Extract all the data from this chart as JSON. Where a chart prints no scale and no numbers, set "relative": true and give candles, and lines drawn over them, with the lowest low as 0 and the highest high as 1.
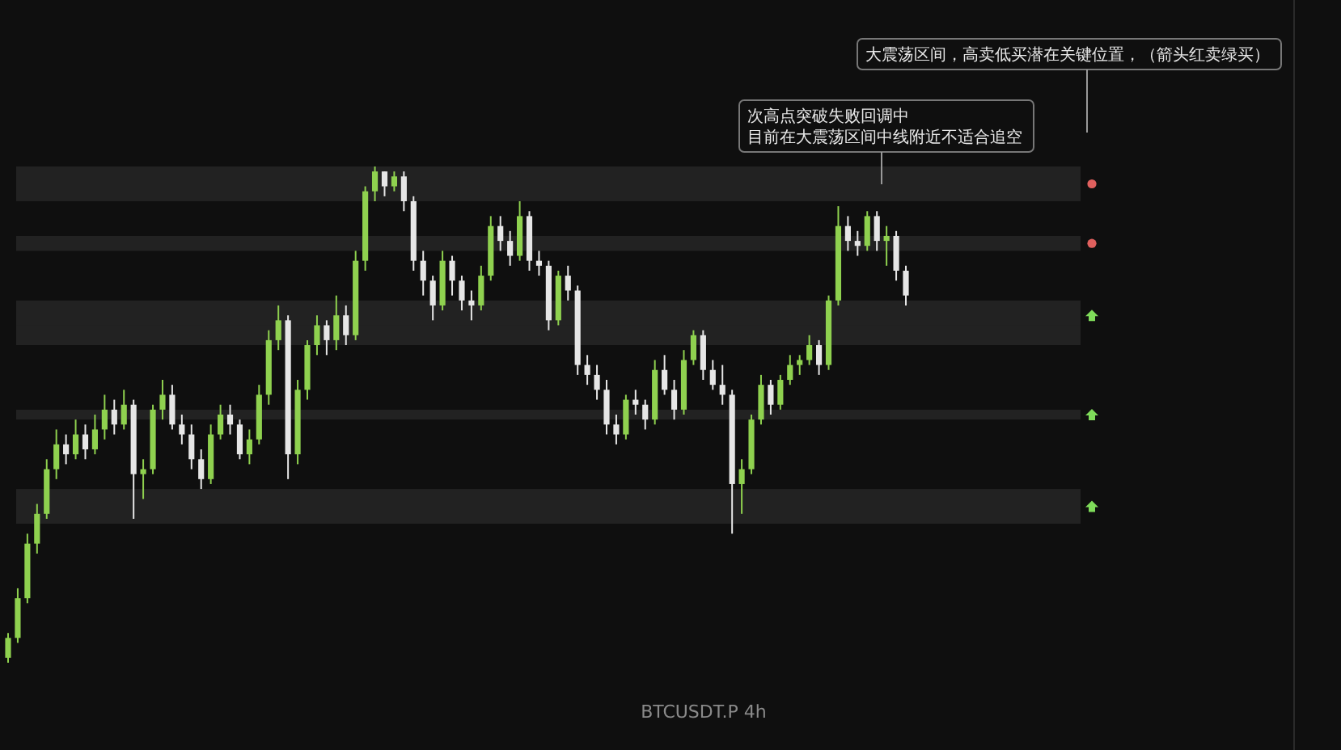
{
  "chart_data": {
    "type": "candlestick",
    "title": "BTCUSDT.P 4h",
    "relative": true,
    "colors": [
      "#8fd14f",
      "#8fd14f",
      "#8fd14f",
      "#8fd14f",
      "#8fd14f",
      "#8fd14f",
      "#e6e6e6",
      "#8fd14f",
      "#e6e6e6",
      "#8fd14f",
      "#8fd14f",
      "#e6e6e6",
      "#8fd14f",
      "#e6e6e6",
      "#8fd14f",
      "#8fd14f",
      "#8fd14f",
      "#e6e6e6",
      "#e6e6e6",
      "#e6e6e6",
      "#e6e6e6",
      "#8fd14f",
      "#8fd14f",
      "#e6e6e6",
      "#e6e6e6",
      "#8fd14f",
      "#8fd14f",
      "#8fd14f",
      "#8fd14f",
      "#e6e6e6",
      "#8fd14f",
      "#8fd14f",
      "#8fd14f",
      "#e6e6e6",
      "#8fd14f",
      "#e6e6e6",
      "#8fd14f",
      "#8fd14f",
      "#8fd14f",
      "#e6e6e6",
      "#8fd14f",
      "#e6e6e6",
      "#e6e6e6",
      "#e6e6e6",
      "#e6e6e6",
      "#8fd14f",
      "#e6e6e6",
      "#e6e6e6",
      "#e6e6e6",
      "#8fd14f",
      "#8fd14f",
      "#e6e6e6",
      "#e6e6e6",
      "#8fd14f",
      "#e6e6e6",
      "#e6e6e6",
      "#e6e6e6",
      "#8fd14f",
      "#e6e6e6",
      "#e6e6e6",
      "#e6e6e6",
      "#e6e6e6",
      "#e6e6e6",
      "#e6e6e6",
      "#8fd14f",
      "#e6e6e6",
      "#e6e6e6",
      "#8fd14f",
      "#e6e6e6",
      "#e6e6e6",
      "#8fd14f",
      "#8fd14f",
      "#e6e6e6",
      "#e6e6e6",
      "#e6e6e6",
      "#e6e6e6",
      "#8fd14f",
      "#8fd14f",
      "#8fd14f",
      "#e6e6e6",
      "#8fd14f",
      "#8fd14f",
      "#8fd14f",
      "#8fd14f",
      "#e6e6e6",
      "#8fd14f",
      "#8fd14f",
      "#e6e6e6",
      "#e6e6e6",
      "#8fd14f",
      "#e6e6e6",
      "#8fd14f",
      "#e6e6e6",
      "#e6e6e6"
    ],
    "annotations": [
      "大震荡区间，高卖低买潜在关键位置，（箭头红卖绿买）",
      "次高点突破失败回调中",
      "目前在大震荡区间中线附近不适合追空"
    ],
    "bands": [
      {
        "axis": "y",
        "from": 0.93,
        "to": 1,
        "color": "#222222"
      },
      {
        "axis": "y",
        "from": 0.83,
        "to": 0.86,
        "color": "#222222"
      },
      {
        "axis": "y",
        "from": 0.67,
        "to": 0.73,
        "color": "#222222"
      },
      {
        "axis": "y",
        "from": 0.64,
        "to": 0.68,
        "color": "#222222"
      },
      {
        "axis": "y",
        "from": 0.49,
        "to": 0.51,
        "color": "#222222"
      },
      {
        "axis": "y",
        "from": 0.28,
        "to": 0.35,
        "color": "#222222"
      }
    ],
    "categories": [
      null,
      null,
      null,
      null,
      null,
      null,
      null,
      null,
      null,
      null,
      null,
      null,
      null,
      null,
      null,
      null,
      null,
      null,
      null,
      null,
      null,
      null,
      null,
      null,
      null,
      null,
      null,
      null,
      null,
      null,
      null,
      null,
      null,
      null,
      null,
      null,
      null,
      null,
      null,
      null,
      null,
      null,
      null,
      null,
      null,
      null,
      null,
      null,
      null,
      null,
      null,
      null,
      null,
      null,
      null,
      null,
      null,
      null,
      null,
      null,
      null,
      null,
      null,
      null,
      null,
      null,
      null,
      null,
      null,
      null,
      null,
      null,
      null,
      null,
      null,
      null,
      null,
      null,
      null,
      null,
      null,
      null,
      null,
      null,
      null,
      null,
      null,
      null,
      null,
      null,
      null,
      null,
      null,
      null
    ],
    "ohlc": [
      [
        0.01,
        0.06,
        0,
        0.05
      ],
      [
        0.05,
        0.15,
        0.04,
        0.13
      ],
      [
        0.13,
        0.26,
        0.12,
        0.24
      ],
      [
        0.24,
        0.32,
        0.22,
        0.3
      ],
      [
        0.3,
        0.41,
        0.29,
        0.39
      ],
      [
        0.39,
        0.47,
        0.37,
        0.44
      ],
      [
        0.44,
        0.46,
        0.4,
        0.42
      ],
      [
        0.42,
        0.49,
        0.41,
        0.46
      ],
      [
        0.46,
        0.48,
        0.41,
        0.43
      ],
      [
        0.43,
        0.5,
        0.42,
        0.47
      ],
      [
        0.47,
        0.54,
        0.45,
        0.51
      ],
      [
        0.51,
        0.53,
        0.46,
        0.48
      ],
      [
        0.48,
        0.55,
        0.47,
        0.52
      ],
      [
        0.52,
        0.53,
        0.29,
        0.38
      ],
      [
        0.38,
        0.41,
        0.33,
        0.39
      ],
      [
        0.39,
        0.52,
        0.38,
        0.51
      ],
      [
        0.51,
        0.57,
        0.49,
        0.54
      ],
      [
        0.54,
        0.56,
        0.47,
        0.48
      ],
      [
        0.48,
        0.5,
        0.44,
        0.46
      ],
      [
        0.46,
        0.48,
        0.39,
        0.41
      ],
      [
        0.41,
        0.43,
        0.35,
        0.37
      ],
      [
        0.37,
        0.48,
        0.36,
        0.46
      ],
      [
        0.46,
        0.52,
        0.45,
        0.5
      ],
      [
        0.5,
        0.52,
        0.46,
        0.48
      ],
      [
        0.48,
        0.49,
        0.41,
        0.42
      ],
      [
        0.42,
        0.47,
        0.4,
        0.45
      ],
      [
        0.45,
        0.56,
        0.44,
        0.54
      ],
      [
        0.54,
        0.67,
        0.52,
        0.65
      ],
      [
        0.65,
        0.72,
        0.63,
        0.69
      ],
      [
        0.69,
        0.7,
        0.37,
        0.42
      ],
      [
        0.42,
        0.57,
        0.4,
        0.55
      ],
      [
        0.55,
        0.65,
        0.53,
        0.64
      ],
      [
        0.64,
        0.7,
        0.62,
        0.68
      ],
      [
        0.68,
        0.69,
        0.62,
        0.65
      ],
      [
        0.65,
        0.74,
        0.63,
        0.7
      ],
      [
        0.7,
        0.72,
        0.64,
        0.66
      ],
      [
        0.66,
        0.83,
        0.65,
        0.81
      ],
      [
        0.81,
        0.96,
        0.79,
        0.95
      ],
      [
        0.95,
        1,
        0.93,
        0.99
      ],
      [
        0.99,
        0.99,
        0.94,
        0.96
      ],
      [
        0.96,
        0.99,
        0.95,
        0.98
      ],
      [
        0.98,
        0.99,
        0.91,
        0.93
      ],
      [
        0.93,
        0.94,
        0.79,
        0.81
      ],
      [
        0.81,
        0.83,
        0.74,
        0.77
      ],
      [
        0.77,
        0.78,
        0.69,
        0.72
      ],
      [
        0.72,
        0.83,
        0.71,
        0.81
      ],
      [
        0.81,
        0.82,
        0.74,
        0.77
      ],
      [
        0.77,
        0.78,
        0.71,
        0.73
      ],
      [
        0.73,
        0.75,
        0.69,
        0.72
      ],
      [
        0.72,
        0.8,
        0.71,
        0.78
      ],
      [
        0.78,
        0.9,
        0.77,
        0.88
      ],
      [
        0.88,
        0.9,
        0.83,
        0.85
      ],
      [
        0.85,
        0.87,
        0.8,
        0.82
      ],
      [
        0.82,
        0.93,
        0.81,
        0.9
      ],
      [
        0.9,
        0.91,
        0.79,
        0.81
      ],
      [
        0.81,
        0.83,
        0.78,
        0.8
      ],
      [
        0.8,
        0.81,
        0.67,
        0.69
      ],
      [
        0.69,
        0.79,
        0.68,
        0.78
      ],
      [
        0.78,
        0.8,
        0.73,
        0.75
      ],
      [
        0.75,
        0.76,
        0.58,
        0.6
      ],
      [
        0.6,
        0.62,
        0.56,
        0.58
      ],
      [
        0.58,
        0.6,
        0.53,
        0.55
      ],
      [
        0.55,
        0.57,
        0.46,
        0.48
      ],
      [
        0.48,
        0.5,
        0.44,
        0.46
      ],
      [
        0.46,
        0.54,
        0.45,
        0.53
      ],
      [
        0.53,
        0.55,
        0.5,
        0.52
      ],
      [
        0.52,
        0.53,
        0.47,
        0.49
      ],
      [
        0.49,
        0.61,
        0.48,
        0.59
      ],
      [
        0.59,
        0.62,
        0.54,
        0.55
      ],
      [
        0.55,
        0.57,
        0.49,
        0.51
      ],
      [
        0.51,
        0.63,
        0.5,
        0.61
      ],
      [
        0.61,
        0.67,
        0.6,
        0.66
      ],
      [
        0.66,
        0.67,
        0.57,
        0.59
      ],
      [
        0.59,
        0.61,
        0.55,
        0.56
      ],
      [
        0.56,
        0.6,
        0.52,
        0.54
      ],
      [
        0.54,
        0.55,
        0.26,
        0.36
      ],
      [
        0.36,
        0.41,
        0.3,
        0.39
      ],
      [
        0.39,
        0.5,
        0.38,
        0.49
      ],
      [
        0.49,
        0.58,
        0.48,
        0.56
      ],
      [
        0.56,
        0.57,
        0.5,
        0.52
      ],
      [
        0.52,
        0.58,
        0.51,
        0.57
      ],
      [
        0.57,
        0.62,
        0.56,
        0.6
      ],
      [
        0.6,
        0.62,
        0.58,
        0.61
      ],
      [
        0.61,
        0.66,
        0.6,
        0.64
      ],
      [
        0.64,
        0.65,
        0.58,
        0.6
      ],
      [
        0.6,
        0.74,
        0.59,
        0.73
      ],
      [
        0.73,
        0.92,
        0.72,
        0.88
      ],
      [
        0.88,
        0.9,
        0.83,
        0.85
      ],
      [
        0.85,
        0.87,
        0.82,
        0.84
      ],
      [
        0.84,
        0.91,
        0.83,
        0.9
      ],
      [
        0.9,
        0.91,
        0.83,
        0.85
      ],
      [
        0.85,
        0.88,
        0.8,
        0.86
      ],
      [
        0.86,
        0.87,
        0.77,
        0.79
      ],
      [
        0.79,
        0.8,
        0.72,
        0.74
      ]
    ]
  }
}
